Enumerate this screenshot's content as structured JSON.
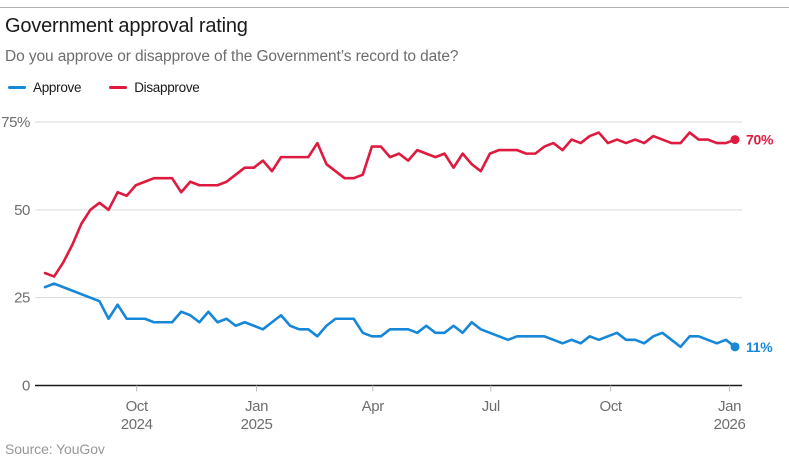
{
  "header": {
    "title": "Government approval rating",
    "subtitle": "Do you approve or disapprove of the Government’s record to date?"
  },
  "legend": {
    "items": [
      {
        "label": "Approve",
        "color": "#1787d8"
      },
      {
        "label": "Disapprove",
        "color": "#df1a3f"
      }
    ]
  },
  "footer": {
    "source": "Source: YouGov"
  },
  "chart_data": {
    "type": "line",
    "title": "Government approval rating",
    "question": "Do you approve or disapprove of the Government’s record to date?",
    "x_start_date": "2024-07-22",
    "x_end_date": "2026-01-05",
    "x_interval": "weekly",
    "ylim": [
      0,
      75
    ],
    "grid": "horizontal",
    "legend_position": "top-left",
    "y_ticks": [
      {
        "value": 0,
        "label": "0"
      },
      {
        "value": 25,
        "label": "25"
      },
      {
        "value": 50,
        "label": "50"
      },
      {
        "value": 75,
        "label": "75%"
      }
    ],
    "x_ticks": [
      {
        "pos": 10.1,
        "lines": [
          "Oct",
          "2024"
        ]
      },
      {
        "pos": 23.3,
        "lines": [
          "Jan",
          "2025"
        ]
      },
      {
        "pos": 36.1,
        "lines": [
          "Apr"
        ]
      },
      {
        "pos": 49.1,
        "lines": [
          "Jul"
        ]
      },
      {
        "pos": 62.3,
        "lines": [
          "Oct"
        ]
      },
      {
        "pos": 75.4,
        "lines": [
          "Jan",
          "2026"
        ]
      }
    ],
    "series": [
      {
        "name": "Approve",
        "color": "#1787d8",
        "end_label": "11%",
        "end_value": 11,
        "values": [
          28,
          29,
          28,
          27,
          26,
          25,
          24,
          19,
          23,
          19,
          19,
          19,
          18,
          18,
          18,
          21,
          20,
          18,
          21,
          18,
          19,
          17,
          18,
          17,
          16,
          18,
          20,
          17,
          16,
          16,
          14,
          17,
          19,
          19,
          19,
          15,
          14,
          14,
          16,
          16,
          16,
          15,
          17,
          15,
          15,
          17,
          15,
          18,
          16,
          15,
          14,
          13,
          14,
          14,
          14,
          14,
          13,
          12,
          13,
          12,
          14,
          13,
          14,
          15,
          13,
          13,
          12,
          14,
          15,
          13,
          11,
          14,
          14,
          13,
          12,
          13,
          11
        ]
      },
      {
        "name": "Disapprove",
        "color": "#df1a3f",
        "end_label": "70%",
        "end_value": 70,
        "values": [
          32,
          31,
          35,
          40,
          46,
          50,
          52,
          50,
          55,
          54,
          57,
          58,
          59,
          59,
          59,
          55,
          58,
          57,
          57,
          57,
          58,
          60,
          62,
          62,
          64,
          61,
          65,
          65,
          65,
          65,
          69,
          63,
          61,
          59,
          59,
          60,
          68,
          68,
          65,
          66,
          64,
          67,
          66,
          65,
          66,
          62,
          66,
          63,
          61,
          66,
          67,
          67,
          67,
          66,
          66,
          68,
          69,
          67,
          70,
          69,
          71,
          72,
          69,
          70,
          69,
          70,
          69,
          71,
          70,
          69,
          69,
          72,
          70,
          70,
          69,
          69,
          70
        ]
      }
    ]
  }
}
